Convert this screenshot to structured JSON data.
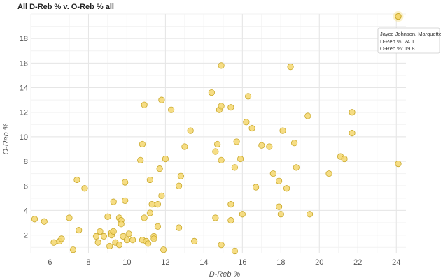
{
  "chart_data": {
    "type": "scatter",
    "title": "All D-Reb % v. O-Reb % all",
    "xlabel": "D-Reb %",
    "ylabel": "O-Reb %",
    "xlim": [
      5,
      24.5
    ],
    "ylim": [
      0.5,
      20
    ],
    "xticks": [
      6,
      8,
      10,
      12,
      14,
      16,
      18,
      20,
      22,
      24
    ],
    "yticks": [
      2,
      4,
      6,
      8,
      10,
      12,
      14,
      16,
      18
    ],
    "grid": true,
    "colors": {
      "point_fill": "#f5d76e",
      "point_stroke": "#c9a82a",
      "highlight_fill": "#f7e08a",
      "grid": "#e6e6e6"
    },
    "tooltip": {
      "name": "Jayce Johnson, Marquette",
      "line1": "D-Reb %: 24.1",
      "line2": "O-Reb %: 19.8",
      "x": 24.1,
      "y": 19.8
    },
    "series": [
      {
        "points": [
          [
            5.2,
            3.3
          ],
          [
            5.7,
            3.1
          ],
          [
            6.2,
            1.4
          ],
          [
            6.5,
            1.5
          ],
          [
            6.6,
            1.7
          ],
          [
            7.0,
            3.4
          ],
          [
            7.2,
            0.8
          ],
          [
            7.4,
            6.5
          ],
          [
            7.5,
            2.4
          ],
          [
            7.8,
            5.8
          ],
          [
            8.4,
            1.9
          ],
          [
            8.5,
            1.4
          ],
          [
            8.6,
            2.3
          ],
          [
            8.8,
            1.9
          ],
          [
            9.0,
            3.5
          ],
          [
            9.1,
            1.1
          ],
          [
            9.2,
            2.2
          ],
          [
            9.2,
            2.0
          ],
          [
            9.3,
            2.3
          ],
          [
            9.3,
            4.7
          ],
          [
            9.4,
            1.4
          ],
          [
            9.6,
            3.4
          ],
          [
            9.6,
            1.2
          ],
          [
            9.7,
            3.2
          ],
          [
            9.7,
            2.9
          ],
          [
            9.8,
            1.9
          ],
          [
            9.9,
            4.8
          ],
          [
            9.9,
            6.3
          ],
          [
            10.0,
            1.6
          ],
          [
            10.1,
            2.1
          ],
          [
            10.3,
            1.6
          ],
          [
            10.7,
            8.1
          ],
          [
            10.8,
            9.4
          ],
          [
            10.8,
            1.6
          ],
          [
            10.9,
            12.6
          ],
          [
            10.9,
            3.4
          ],
          [
            11.0,
            1.5
          ],
          [
            11.1,
            1.3
          ],
          [
            11.2,
            6.5
          ],
          [
            11.2,
            3.8
          ],
          [
            11.3,
            4.5
          ],
          [
            11.4,
            1.9
          ],
          [
            11.4,
            1.7
          ],
          [
            11.6,
            4.5
          ],
          [
            11.6,
            2.7
          ],
          [
            11.7,
            7.4
          ],
          [
            11.8,
            13.0
          ],
          [
            11.8,
            5.2
          ],
          [
            11.9,
            0.8
          ],
          [
            12.0,
            8.2
          ],
          [
            12.3,
            12.2
          ],
          [
            12.7,
            6.0
          ],
          [
            12.7,
            2.6
          ],
          [
            12.8,
            6.8
          ],
          [
            13.0,
            9.2
          ],
          [
            13.3,
            10.5
          ],
          [
            13.5,
            1.5
          ],
          [
            14.4,
            13.6
          ],
          [
            14.6,
            8.8
          ],
          [
            14.6,
            3.4
          ],
          [
            14.7,
            9.4
          ],
          [
            14.8,
            12.2
          ],
          [
            14.9,
            12.5
          ],
          [
            14.9,
            8.1
          ],
          [
            14.9,
            15.8
          ],
          [
            14.9,
            1.2
          ],
          [
            15.4,
            12.4
          ],
          [
            15.4,
            4.5
          ],
          [
            15.4,
            3.2
          ],
          [
            15.6,
            7.5
          ],
          [
            15.6,
            0.7
          ],
          [
            15.7,
            9.6
          ],
          [
            15.9,
            8.2
          ],
          [
            16.0,
            3.7
          ],
          [
            16.2,
            11.2
          ],
          [
            16.3,
            13.3
          ],
          [
            16.5,
            10.7
          ],
          [
            16.7,
            5.9
          ],
          [
            17.0,
            9.3
          ],
          [
            17.4,
            9.2
          ],
          [
            17.6,
            7.0
          ],
          [
            17.9,
            6.4
          ],
          [
            17.9,
            4.3
          ],
          [
            18.0,
            3.7
          ],
          [
            18.1,
            10.5
          ],
          [
            18.3,
            5.8
          ],
          [
            18.5,
            15.7
          ],
          [
            18.7,
            9.5
          ],
          [
            18.8,
            7.5
          ],
          [
            19.4,
            11.7
          ],
          [
            19.5,
            3.7
          ],
          [
            20.5,
            7.0
          ],
          [
            21.1,
            8.4
          ],
          [
            21.3,
            8.2
          ],
          [
            21.7,
            12.0
          ],
          [
            21.7,
            10.3
          ],
          [
            24.1,
            7.8
          ]
        ]
      }
    ]
  }
}
